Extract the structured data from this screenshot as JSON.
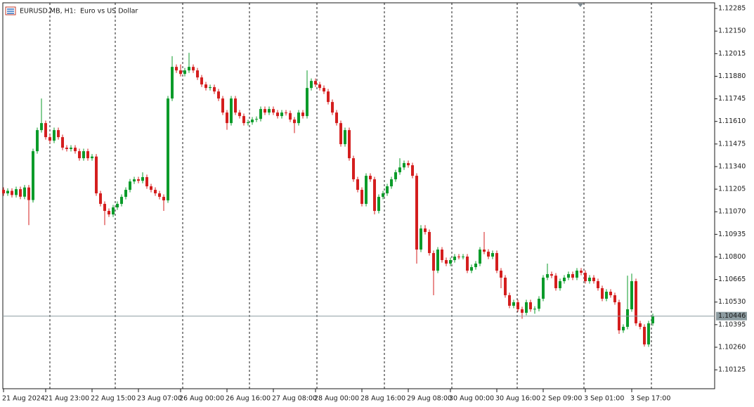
{
  "chart_data": {
    "type": "candlestick",
    "title": "EURUSD.MB, H1:  Euro vs US Dollar",
    "up_color": "#0b9b2a",
    "down_color": "#d41e1e",
    "current_price": 1.10446,
    "current_price_color": "#8c9ba0",
    "ylim": [
      1.10012,
      1.12319
    ],
    "yticks": [
      1.12285,
      {
        "value": 1.1215,
        "label": "1.12150"
      },
      1.12015,
      {
        "value": 1.1188,
        "label": "1.11880"
      },
      1.11745,
      {
        "value": 1.1161,
        "label": "1.11610"
      },
      1.11475,
      {
        "value": 1.1134,
        "label": "1.11340"
      },
      1.11205,
      {
        "value": 1.1107,
        "label": "1.11070"
      },
      1.10935,
      {
        "value": 1.108,
        "label": "1.10800"
      },
      1.10665,
      {
        "value": 1.1053,
        "label": "1.10530"
      },
      1.10395,
      {
        "value": 1.1026,
        "label": "1.10260"
      },
      1.10125
    ],
    "categories": [
      "21 Aug 2024",
      null,
      null,
      null,
      null,
      null,
      null,
      null,
      null,
      null,
      "21 Aug 23:00",
      null,
      null,
      null,
      null,
      null,
      null,
      null,
      null,
      null,
      null,
      "22 Aug 15:00",
      null,
      null,
      null,
      null,
      null,
      null,
      null,
      null,
      null,
      null,
      "23 Aug 07:00",
      null,
      null,
      null,
      null,
      null,
      null,
      null,
      null,
      null,
      "26 Aug 00:00",
      null,
      null,
      null,
      null,
      null,
      null,
      null,
      null,
      null,
      null,
      "26 Aug 16:00",
      null,
      null,
      null,
      null,
      null,
      null,
      null,
      null,
      null,
      null,
      "27 Aug 08:00",
      null,
      null,
      null,
      null,
      null,
      null,
      null,
      null,
      null,
      "28 Aug 00:00",
      null,
      null,
      null,
      null,
      null,
      null,
      null,
      null,
      null,
      null,
      "28 Aug 16:00",
      null,
      null,
      null,
      null,
      null,
      null,
      null,
      null,
      null,
      null,
      "29 Aug 08:00",
      null,
      null,
      null,
      null,
      null,
      null,
      null,
      null,
      null,
      "30 Aug 00:00",
      null,
      null,
      null,
      null,
      null,
      null,
      null,
      null,
      null,
      null,
      "30 Aug 16:00",
      null,
      null,
      null,
      null,
      null,
      null,
      null,
      null,
      null,
      null,
      "2 Sep 09:00",
      null,
      null,
      null,
      null,
      null,
      null,
      null,
      null,
      null,
      "3 Sep 01:00",
      null,
      null,
      null,
      null,
      null,
      null,
      null,
      null,
      null,
      null,
      "3 Sep 17:00",
      null,
      null,
      null,
      null,
      null
    ],
    "open": [
      1.11201,
      1.1118,
      1.11195,
      1.1117,
      1.11205,
      1.1116,
      1.11215,
      1.1114,
      1.11432,
      1.11558,
      1.116,
      1.11516,
      1.11495,
      1.11558,
      1.11516,
      1.11453,
      1.11445,
      1.11453,
      1.11432,
      1.1139,
      1.11432,
      1.1139,
      1.114,
      1.1118,
      1.11117,
      1.11075,
      1.11054,
      1.11096,
      1.11117,
      1.11159,
      1.11201,
      1.11251,
      1.11264,
      1.11255,
      1.11277,
      1.11222,
      1.11201,
      1.1118,
      1.11159,
      1.11138,
      1.11747,
      1.11936,
      1.11915,
      1.11894,
      1.11915,
      1.11936,
      1.11915,
      1.11873,
      1.11831,
      1.1181,
      1.11815,
      1.11789,
      1.11747,
      1.11663,
      1.116,
      1.11747,
      1.11663,
      1.11642,
      1.116,
      1.11605,
      1.11621,
      1.11625,
      1.11684,
      1.11663,
      1.11684,
      1.11663,
      1.11642,
      1.11663,
      1.1166,
      1.11621,
      1.116,
      1.11663,
      1.11642,
      1.1181,
      1.11852,
      1.11831,
      1.1181,
      1.11789,
      1.11726,
      1.11663,
      1.116,
      1.11474,
      1.11558,
      1.1139,
      1.11264,
      1.11201,
      1.11117,
      1.11285,
      1.11264,
      1.11075,
      1.11159,
      1.1118,
      1.11222,
      1.11264,
      1.11306,
      1.11335,
      1.11361,
      1.11348,
      1.11285,
      1.10844,
      1.1097,
      1.10949,
      1.10823,
      1.10718,
      1.10844,
      1.10781,
      1.1076,
      1.10781,
      1.10802,
      1.108,
      1.10802,
      1.10718,
      1.10739,
      1.1076,
      1.10844,
      1.10831,
      1.10802,
      1.10823,
      1.10718,
      1.10676,
      1.10571,
      1.10508,
      1.10529,
      1.10487,
      1.10466,
      1.10529,
      1.10487,
      1.1049,
      1.1055,
      1.10676,
      1.10697,
      1.10688,
      1.10613,
      1.10655,
      1.10676,
      1.10697,
      1.10676,
      1.10718,
      1.10705,
      1.10655,
      1.10676,
      1.10655,
      1.10613,
      1.1055,
      1.10592,
      1.10571,
      1.10529,
      1.10361,
      1.10382,
      1.10487,
      1.10655,
      1.10403,
      1.10382,
      1.10277,
      1.10403
    ],
    "high": [
      1.11216,
      1.1121,
      1.1121,
      1.1122,
      1.1122,
      1.1123,
      1.1123,
      1.11447,
      1.11573,
      1.11747,
      1.11615,
      1.11531,
      1.11573,
      1.11573,
      1.11531,
      1.11468,
      1.11468,
      1.11468,
      1.11447,
      1.11447,
      1.11447,
      1.11415,
      1.11415,
      1.11195,
      1.11132,
      1.1109,
      1.11111,
      1.11132,
      1.11174,
      1.11216,
      1.11266,
      1.11279,
      1.11279,
      1.11306,
      1.11292,
      1.11237,
      1.11216,
      1.11195,
      1.11174,
      1.11762,
      1.12,
      1.11951,
      1.11951,
      1.1193,
      1.1202,
      1.11951,
      1.1193,
      1.11888,
      1.11846,
      1.1183,
      1.1183,
      1.11804,
      1.11762,
      1.11678,
      1.11762,
      1.11762,
      1.11678,
      1.11657,
      1.1162,
      1.11636,
      1.1164,
      1.11699,
      1.11699,
      1.11699,
      1.11699,
      1.11678,
      1.11678,
      1.11678,
      1.11675,
      1.11636,
      1.11678,
      1.11678,
      1.11915,
      1.11867,
      1.11867,
      1.11846,
      1.11825,
      1.11804,
      1.11741,
      1.11678,
      1.11615,
      1.11573,
      1.11573,
      1.11405,
      1.11279,
      1.11216,
      1.113,
      1.113,
      1.11279,
      1.11174,
      1.11195,
      1.11237,
      1.11279,
      1.11321,
      1.1139,
      1.11376,
      1.11376,
      1.11363,
      1.113,
      1.1099,
      1.1099,
      1.10964,
      1.10838,
      1.10859,
      1.10859,
      1.10796,
      1.10796,
      1.10817,
      1.10817,
      1.10817,
      1.10817,
      1.10754,
      1.10775,
      1.10859,
      1.10949,
      1.10846,
      1.10838,
      1.10838,
      1.10733,
      1.10691,
      1.10586,
      1.10544,
      1.10544,
      1.10502,
      1.10544,
      1.10544,
      1.10505,
      1.10565,
      1.10691,
      1.1076,
      1.10712,
      1.10703,
      1.1067,
      1.10691,
      1.10712,
      1.10712,
      1.10733,
      1.10733,
      1.1072,
      1.10691,
      1.10691,
      1.1067,
      1.10628,
      1.10607,
      1.10607,
      1.10586,
      1.10544,
      1.10397,
      1.10688,
      1.107,
      1.1067,
      1.10418,
      1.10397,
      1.10418,
      1.10461
    ],
    "low": [
      1.11165,
      1.11165,
      1.11155,
      1.11155,
      1.11145,
      1.11145,
      1.1099,
      1.11125,
      1.11417,
      1.11543,
      1.11501,
      1.1148,
      1.1148,
      1.11501,
      1.11438,
      1.1143,
      1.1143,
      1.11417,
      1.11375,
      1.11375,
      1.11375,
      1.11375,
      1.11165,
      1.11102,
      1.1099,
      1.11039,
      1.11039,
      1.11081,
      1.11102,
      1.11144,
      1.11186,
      1.11236,
      1.1124,
      1.1124,
      1.11207,
      1.11186,
      1.11165,
      1.11144,
      1.11075,
      1.11123,
      1.11732,
      1.119,
      1.11879,
      1.11879,
      1.119,
      1.119,
      1.11858,
      1.11816,
      1.11795,
      1.11795,
      1.11774,
      1.11732,
      1.11648,
      1.1156,
      1.11585,
      1.11648,
      1.11627,
      1.11585,
      1.11585,
      1.1159,
      1.11606,
      1.1161,
      1.11648,
      1.11648,
      1.11648,
      1.11627,
      1.11627,
      1.11645,
      1.11606,
      1.1154,
      1.11585,
      1.11627,
      1.11627,
      1.11795,
      1.11816,
      1.11795,
      1.11774,
      1.11711,
      1.11648,
      1.11585,
      1.11459,
      1.11459,
      1.11375,
      1.11249,
      1.11186,
      1.11102,
      1.11102,
      1.11249,
      1.11054,
      1.1106,
      1.11144,
      1.11165,
      1.11207,
      1.11249,
      1.11291,
      1.1132,
      1.11333,
      1.1127,
      1.1076,
      1.10829,
      1.10934,
      1.10808,
      1.10571,
      1.10703,
      1.10766,
      1.10745,
      1.10745,
      1.10766,
      1.10785,
      1.10785,
      1.10703,
      1.10703,
      1.10724,
      1.10745,
      1.10816,
      1.10787,
      1.10787,
      1.10703,
      1.10613,
      1.10556,
      1.10493,
      1.10493,
      1.10472,
      1.1043,
      1.10451,
      1.10472,
      1.1046,
      1.10475,
      1.10535,
      1.10661,
      1.10673,
      1.10598,
      1.10598,
      1.1064,
      1.10661,
      1.10661,
      1.10661,
      1.1069,
      1.1064,
      1.1064,
      1.1064,
      1.10598,
      1.10535,
      1.10535,
      1.10556,
      1.10514,
      1.1034,
      1.10346,
      1.10367,
      1.10472,
      1.10388,
      1.10367,
      1.10264,
      1.10262,
      1.10388
    ],
    "close": [
      1.1118,
      1.11195,
      1.1117,
      1.11205,
      1.1116,
      1.11215,
      1.1114,
      1.11432,
      1.11558,
      1.116,
      1.11516,
      1.11495,
      1.11558,
      1.11516,
      1.11453,
      1.11445,
      1.11453,
      1.11432,
      1.1139,
      1.11432,
      1.1139,
      1.114,
      1.1118,
      1.11117,
      1.11075,
      1.11054,
      1.11096,
      1.11117,
      1.11159,
      1.11201,
      1.11251,
      1.11264,
      1.11255,
      1.11277,
      1.11222,
      1.11201,
      1.1118,
      1.11159,
      1.11138,
      1.11747,
      1.11936,
      1.11915,
      1.11894,
      1.11915,
      1.11936,
      1.11915,
      1.11873,
      1.11831,
      1.1181,
      1.11815,
      1.11789,
      1.11747,
      1.11663,
      1.116,
      1.11747,
      1.11663,
      1.11642,
      1.116,
      1.11605,
      1.11621,
      1.11625,
      1.11684,
      1.11663,
      1.11684,
      1.11663,
      1.11642,
      1.11663,
      1.1166,
      1.11621,
      1.116,
      1.11663,
      1.11642,
      1.1181,
      1.11852,
      1.11831,
      1.1181,
      1.11789,
      1.11726,
      1.11663,
      1.116,
      1.11474,
      1.11558,
      1.1139,
      1.11264,
      1.11201,
      1.11117,
      1.11285,
      1.11264,
      1.11075,
      1.11159,
      1.1118,
      1.11222,
      1.11264,
      1.11306,
      1.11335,
      1.11361,
      1.11348,
      1.11285,
      1.10844,
      1.1097,
      1.10949,
      1.10823,
      1.10718,
      1.10844,
      1.10781,
      1.1076,
      1.10781,
      1.10802,
      1.108,
      1.10802,
      1.10718,
      1.10739,
      1.1076,
      1.10844,
      1.10831,
      1.10802,
      1.10823,
      1.10718,
      1.10676,
      1.10571,
      1.10508,
      1.10529,
      1.10487,
      1.10466,
      1.10529,
      1.10487,
      1.1049,
      1.1055,
      1.10676,
      1.10697,
      1.10688,
      1.10613,
      1.10655,
      1.10676,
      1.10697,
      1.10676,
      1.10718,
      1.10705,
      1.10655,
      1.10676,
      1.10655,
      1.10613,
      1.1055,
      1.10592,
      1.10571,
      1.10529,
      1.10361,
      1.10382,
      1.10487,
      1.10655,
      1.10403,
      1.10382,
      1.10277,
      1.10403,
      1.10446
    ]
  }
}
